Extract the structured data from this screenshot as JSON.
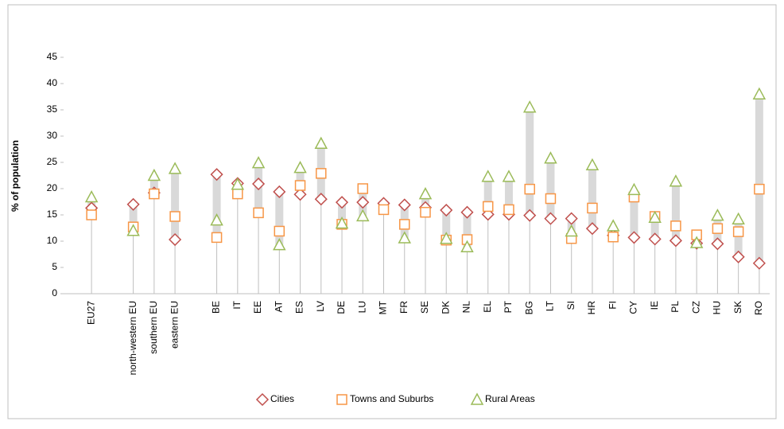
{
  "chart_data": {
    "type": "dot-range",
    "y_axis_label": "% of population",
    "categories": [
      "EU27",
      null,
      "north-western EU",
      "southern EU",
      "eastern EU",
      null,
      "BE",
      "IT",
      "EE",
      "AT",
      "ES",
      "LV",
      "DE",
      "LU",
      "MT",
      "FR",
      "SE",
      "DK",
      "NL",
      "EL",
      "PT",
      "BG",
      "LT",
      "SI",
      "HR",
      "FI",
      "CY",
      "IE",
      "PL",
      "CZ",
      "HU",
      "SK",
      "RO"
    ],
    "series": [
      {
        "name": "Cities",
        "color": "#c0504d",
        "marker": "diamond",
        "values": [
          16.3,
          null,
          17,
          19.2,
          10.3,
          null,
          22.7,
          21,
          20.9,
          19.4,
          18.9,
          18,
          17.4,
          17.4,
          17.2,
          16.9,
          16.4,
          15.9,
          15.5,
          15.1,
          15.1,
          14.9,
          14.3,
          14.3,
          12.4,
          11.1,
          10.7,
          10.4,
          10.1,
          9.6,
          9.5,
          7,
          5.8
        ]
      },
      {
        "name": "Towns and Suburbs",
        "color": "#f79646",
        "marker": "square",
        "values": [
          15,
          null,
          12.7,
          19,
          14.7,
          null,
          10.7,
          19,
          15.4,
          11.9,
          20.6,
          22.9,
          13.2,
          20,
          16,
          13.2,
          15.5,
          10.2,
          10.3,
          16.6,
          16,
          19.9,
          18.1,
          10.5,
          16.3,
          10.8,
          18.4,
          14.7,
          12.9,
          11.2,
          12.4,
          11.8,
          19.9
        ]
      },
      {
        "name": "Rural Areas",
        "color": "#9bbb59",
        "marker": "triangle",
        "values": [
          18.4,
          null,
          12,
          22.5,
          23.8,
          null,
          14,
          20.8,
          24.9,
          9.3,
          24,
          28.6,
          13.4,
          14.8,
          null,
          10.6,
          19,
          10.5,
          8.9,
          22.3,
          22.3,
          35.5,
          25.8,
          11.9,
          24.5,
          12.9,
          19.8,
          14.5,
          21.4,
          9.7,
          14.9,
          14.2,
          38
        ]
      }
    ],
    "ylim": [
      0,
      45
    ],
    "yticks": [
      0,
      5,
      10,
      15,
      20,
      25,
      30,
      35,
      40,
      45
    ],
    "grid": false,
    "legend": "bottom"
  }
}
